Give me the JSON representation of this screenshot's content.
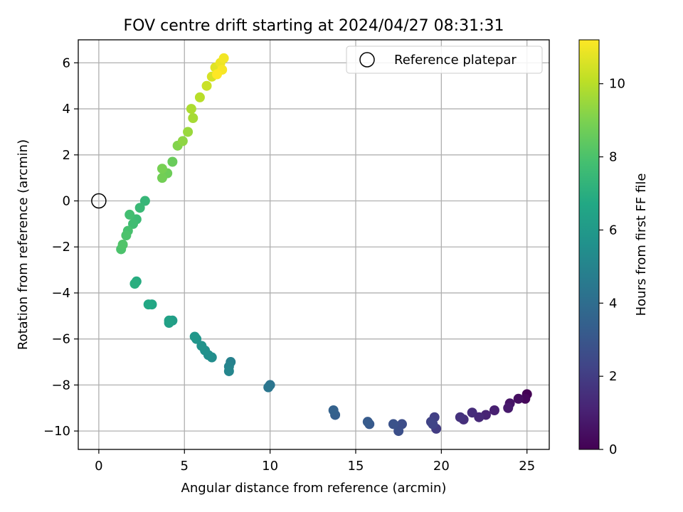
{
  "chart_data": {
    "type": "scatter",
    "title": "FOV centre drift starting at 2024/04/27 08:31:31",
    "xlabel": "Angular distance from reference (arcmin)",
    "ylabel": "Rotation from reference (arcmin)",
    "xlim": [
      -1.2,
      26.3
    ],
    "ylim": [
      -10.8,
      7.0
    ],
    "xticks": [
      0,
      5,
      10,
      15,
      20,
      25
    ],
    "xtick_labels": [
      "0",
      "5",
      "10",
      "15",
      "20",
      "25"
    ],
    "yticks": [
      -10,
      -8,
      -6,
      -4,
      -2,
      0,
      2,
      4,
      6
    ],
    "ytick_labels": [
      "−10",
      "−8",
      "−6",
      "−4",
      "−2",
      "0",
      "2",
      "4",
      "6"
    ],
    "grid": true,
    "legend": {
      "location": "top-right",
      "entries": [
        {
          "label": "Reference platepar",
          "marker": "open-circle"
        }
      ]
    },
    "colorbar": {
      "label": "Hours from first FF file",
      "colormap": "viridis",
      "range": [
        0,
        11.2
      ],
      "ticks": [
        0,
        2,
        4,
        6,
        8,
        10
      ],
      "tick_labels": [
        "0",
        "2",
        "4",
        "6",
        "8",
        "10"
      ]
    },
    "reference_point": {
      "x": 0,
      "y": 0
    },
    "series": [
      {
        "x": [
          25.0,
          24.9,
          24.5,
          24.0,
          23.9,
          23.1,
          22.6,
          22.2,
          21.8,
          21.3,
          21.1,
          19.7,
          19.6,
          19.4,
          19.5,
          17.7,
          17.5,
          17.2,
          15.8,
          15.7,
          13.8,
          13.7,
          10.0,
          9.9,
          7.7,
          7.6,
          7.6,
          6.6,
          6.4,
          6.2,
          6.0,
          5.7,
          5.6,
          4.3,
          4.1,
          4.1,
          3.1,
          2.9,
          2.2,
          2.1,
          2.7,
          2.4,
          2.2,
          2.0,
          1.8,
          1.7,
          1.6,
          1.3,
          1.4,
          4.3,
          4.0,
          3.7,
          3.7,
          4.6,
          4.9,
          5.2,
          5.5,
          5.4,
          5.9,
          6.3,
          6.6,
          6.8,
          7.1,
          7.3,
          7.2,
          6.9
        ],
        "y": [
          -8.4,
          -8.6,
          -8.6,
          -8.8,
          -9.0,
          -9.1,
          -9.3,
          -9.4,
          -9.2,
          -9.5,
          -9.4,
          -9.9,
          -9.4,
          -9.6,
          -9.7,
          -9.7,
          -10.0,
          -9.7,
          -9.7,
          -9.6,
          -9.3,
          -9.1,
          -8.0,
          -8.1,
          -7.0,
          -7.2,
          -7.4,
          -6.8,
          -6.7,
          -6.5,
          -6.3,
          -6.0,
          -5.9,
          -5.2,
          -5.3,
          -5.2,
          -4.5,
          -4.5,
          -3.5,
          -3.6,
          0.0,
          -0.3,
          -0.8,
          -1.0,
          -0.6,
          -1.3,
          -1.5,
          -2.1,
          -1.9,
          1.7,
          1.2,
          1.0,
          1.4,
          2.4,
          2.6,
          3.0,
          3.6,
          4.0,
          4.5,
          5.0,
          5.4,
          5.8,
          6.0,
          6.2,
          5.7,
          5.5
        ],
        "hours": [
          0.0,
          0.2,
          0.4,
          0.6,
          0.8,
          1.0,
          1.1,
          1.3,
          1.4,
          1.5,
          1.6,
          2.0,
          2.1,
          2.2,
          2.3,
          2.6,
          2.7,
          2.8,
          3.1,
          3.2,
          3.4,
          3.5,
          4.3,
          4.4,
          4.9,
          5.0,
          5.1,
          5.4,
          5.5,
          5.6,
          5.7,
          5.8,
          5.9,
          6.2,
          6.3,
          6.4,
          6.6,
          6.7,
          6.9,
          7.0,
          7.4,
          7.5,
          7.6,
          7.7,
          7.8,
          7.9,
          8.0,
          8.0,
          8.1,
          8.6,
          8.7,
          8.8,
          8.9,
          9.1,
          9.3,
          9.5,
          9.7,
          9.8,
          10.0,
          10.3,
          10.5,
          10.7,
          10.9,
          11.0,
          11.1,
          11.2
        ]
      }
    ]
  }
}
